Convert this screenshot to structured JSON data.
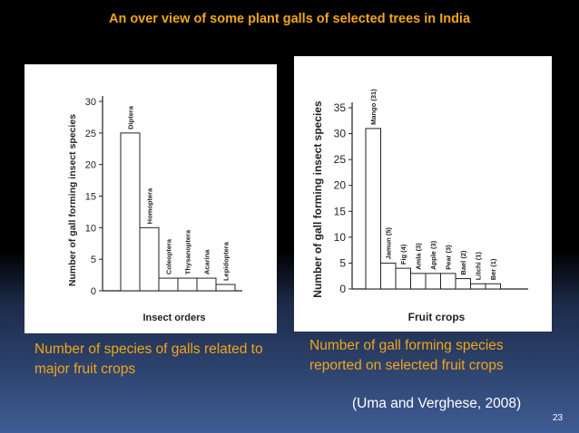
{
  "slide": {
    "title": "An over view of some plant galls of selected trees in India",
    "caption_left": "Number of species of galls related to major fruit crops",
    "caption_right": "Number of gall forming species reported on selected fruit crops",
    "citation": "(Uma and Verghese, 2008)",
    "page_number": "23"
  },
  "colors": {
    "title": "#f2a51b",
    "caption": "#f2a51b",
    "text_light": "#ffffff"
  },
  "chart_data": [
    {
      "type": "bar",
      "categories": [
        "Diptera",
        "Homoptera",
        "Coleoptera",
        "Thysanoptera",
        "Acarina",
        "Lepidoptera"
      ],
      "values": [
        25,
        10,
        2,
        2,
        2,
        1
      ],
      "ylabel": "Number of gall forming insect species",
      "xlabel": "Insect orders",
      "ylim": [
        0,
        30
      ],
      "yticks": [
        0,
        5,
        10,
        15,
        20,
        25,
        30
      ],
      "grid": false
    },
    {
      "type": "bar",
      "categories": [
        "Mango (31)",
        "Jamun (5)",
        "Fig (4)",
        "Amla (3)",
        "Apple (3)",
        "Pear (3)",
        "Bael (2)",
        "Litchi (1)",
        "Ber (1)"
      ],
      "values": [
        31,
        5,
        4,
        3,
        3,
        3,
        2,
        1,
        1
      ],
      "ylabel": "Number of gall forming insect species",
      "xlabel": "Fruit crops",
      "ylim": [
        0,
        35
      ],
      "yticks": [
        0,
        5,
        10,
        15,
        20,
        25,
        30,
        35
      ],
      "grid": false
    }
  ]
}
